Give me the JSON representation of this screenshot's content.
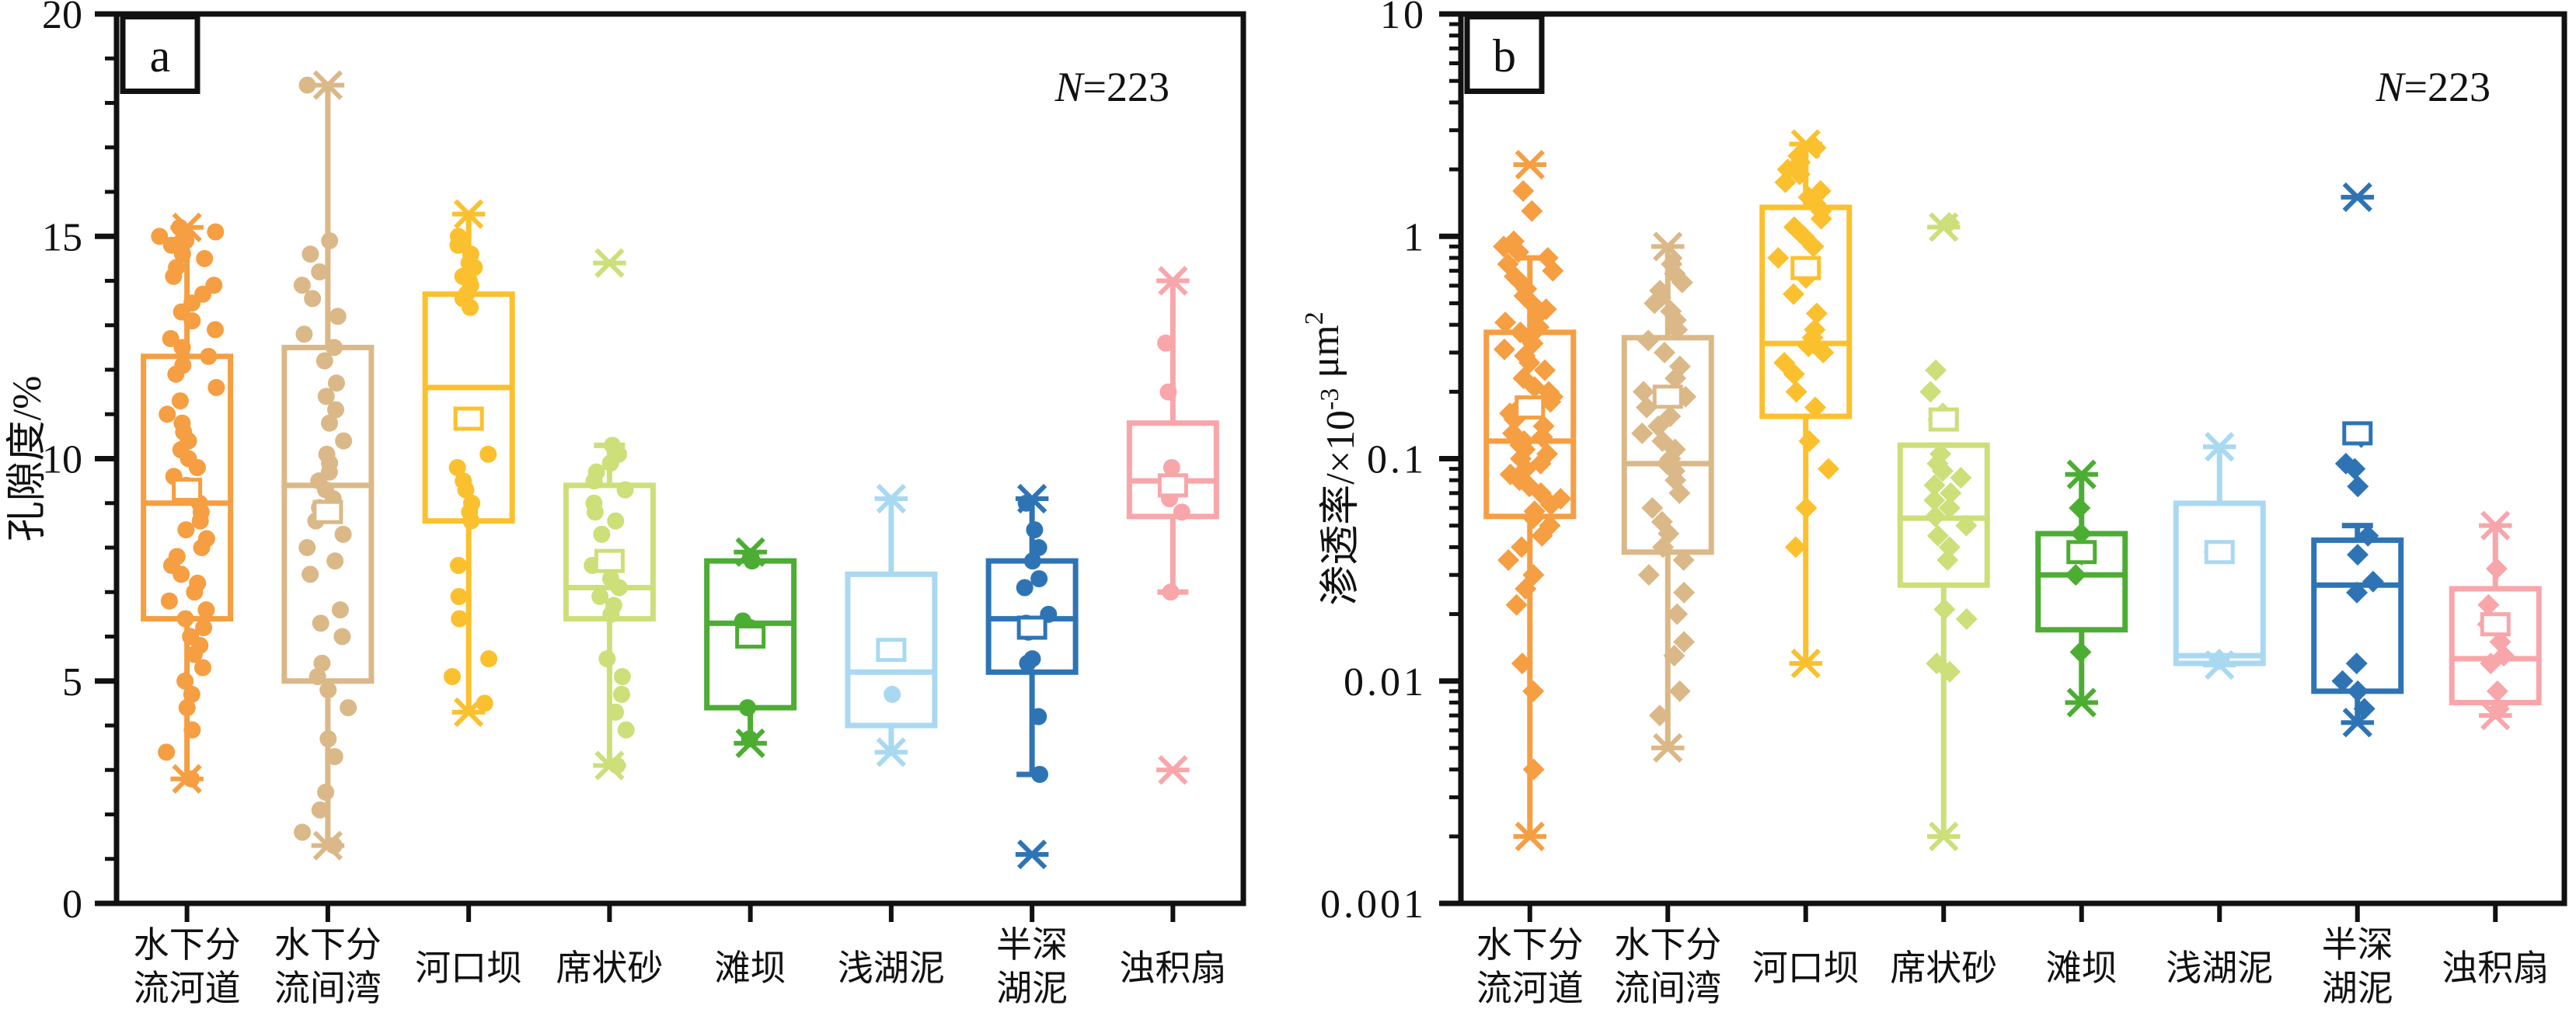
{
  "figure": {
    "background": "#ffffff",
    "sample_annotation": {
      "italic": "N",
      "rest": "=223"
    }
  },
  "chart_data": [
    {
      "type": "box",
      "panel_label": "a",
      "annotation": "N=223",
      "ylabel": "孔隙度/%",
      "ylabel_segments": [
        {
          "t": "孔隙度/%"
        }
      ],
      "y_scale": "linear",
      "ylim": [
        0,
        20
      ],
      "y_major_ticks": [
        0,
        5,
        10,
        15,
        20
      ],
      "y_tick_labels": [
        "0",
        "5",
        "10",
        "15",
        "20"
      ],
      "y_minor_step": 1,
      "point_marker": "circle",
      "legend_position": "none",
      "grid": false,
      "categories": [
        {
          "name": "水下分流河道",
          "lines": [
            "水下分",
            "流河道"
          ],
          "color": "#F59E42",
          "box": {
            "low": 2.8,
            "q1": 6.4,
            "median": 9.0,
            "mean": 9.3,
            "q3": 12.3,
            "high": 15.2,
            "star_top": true,
            "star_bottom": true
          },
          "outliers": [],
          "points": [
            15.2,
            15.1,
            15.0,
            14.9,
            14.8,
            14.6,
            14.5,
            14.3,
            14.1,
            13.9,
            13.7,
            13.5,
            13.3,
            13.1,
            12.9,
            12.7,
            12.5,
            12.3,
            12.1,
            11.9,
            11.6,
            11.3,
            11.0,
            10.8,
            10.6,
            10.4,
            10.2,
            10.0,
            9.8,
            9.6,
            9.4,
            9.2,
            9.0,
            8.8,
            8.6,
            8.4,
            8.2,
            8.0,
            7.8,
            7.6,
            7.4,
            7.2,
            7.0,
            6.8,
            6.6,
            6.4,
            6.2,
            6.0,
            5.8,
            5.6,
            5.3,
            5.0,
            4.7,
            4.4,
            3.9,
            3.4,
            2.8
          ]
        },
        {
          "name": "水下分流间湾",
          "lines": [
            "水下分",
            "流间湾"
          ],
          "color": "#DBB888",
          "box": {
            "low": 1.3,
            "q1": 5.0,
            "median": 9.4,
            "mean": 8.8,
            "q3": 12.5,
            "high": 18.4,
            "star_top": true,
            "star_bottom": true
          },
          "outliers": [],
          "points": [
            18.4,
            14.9,
            14.6,
            14.2,
            13.9,
            13.6,
            13.2,
            12.8,
            12.5,
            12.2,
            11.7,
            11.4,
            11.1,
            10.8,
            10.4,
            10.1,
            9.9,
            9.7,
            9.5,
            9.3,
            9.1,
            8.9,
            8.6,
            8.3,
            8.0,
            7.7,
            7.4,
            6.6,
            6.3,
            6.0,
            5.4,
            5.1,
            4.8,
            4.4,
            3.7,
            3.3,
            2.5,
            2.1,
            1.6,
            1.3
          ]
        },
        {
          "name": "河口坝",
          "lines": [
            "河口坝"
          ],
          "color": "#FBC02D",
          "box": {
            "low": 4.3,
            "q1": 8.6,
            "median": 11.6,
            "mean": 10.9,
            "q3": 13.7,
            "high": 15.5,
            "star_top": true,
            "star_bottom": true
          },
          "outliers": [],
          "points": [
            15.0,
            14.8,
            14.6,
            14.4,
            14.3,
            14.1,
            14.0,
            13.9,
            13.7,
            13.6,
            13.4,
            10.1,
            9.8,
            9.5,
            9.3,
            9.0,
            8.8,
            8.6,
            7.6,
            6.9,
            6.4,
            5.5,
            5.1,
            4.5
          ]
        },
        {
          "name": "席状砂",
          "lines": [
            "席状砂"
          ],
          "color": "#CCDF79",
          "box": {
            "low": 3.1,
            "q1": 6.4,
            "median": 7.1,
            "mean": 7.7,
            "q3": 9.4,
            "high": 10.3,
            "star_top": false,
            "star_bottom": true
          },
          "outliers": [
            14.4
          ],
          "points": [
            10.3,
            10.1,
            9.9,
            9.7,
            9.5,
            9.3,
            9.0,
            8.8,
            8.6,
            8.3,
            7.6,
            7.3,
            7.1,
            6.9,
            6.7,
            6.5,
            5.5,
            5.1,
            4.7,
            4.3,
            3.9,
            3.1
          ]
        },
        {
          "name": "滩坝",
          "lines": [
            "滩坝"
          ],
          "color": "#4CAD33",
          "box": {
            "low": 3.6,
            "q1": 4.4,
            "median": 6.3,
            "mean": 6.0,
            "q3": 7.7,
            "high": 7.9,
            "star_top": true,
            "star_bottom": true
          },
          "outliers": [],
          "points": [
            7.8,
            7.7,
            6.35,
            6.2,
            4.4,
            3.7
          ]
        },
        {
          "name": "浅湖泥",
          "lines": [
            "浅湖泥"
          ],
          "color": "#A9D9F1",
          "box": {
            "low": 3.4,
            "q1": 4.0,
            "median": 5.2,
            "mean": 5.7,
            "q3": 7.4,
            "high": 9.1,
            "star_top": true,
            "star_bottom": true
          },
          "outliers": [],
          "points": [
            5.7,
            4.7
          ]
        },
        {
          "name": "半深湖泥",
          "lines": [
            "半深",
            "湖泥"
          ],
          "color": "#2E74B5",
          "box": {
            "low": 2.9,
            "q1": 5.2,
            "median": 6.4,
            "mean": 6.2,
            "q3": 7.7,
            "high": 9.1,
            "star_top": true,
            "star_bottom": false
          },
          "outliers": [
            1.1
          ],
          "points": [
            9.0,
            8.4,
            8.0,
            7.7,
            7.3,
            7.1,
            6.5,
            6.3,
            6.1,
            5.5,
            5.4,
            4.2,
            2.9
          ]
        },
        {
          "name": "浊积扇",
          "lines": [
            "浊积扇"
          ],
          "color": "#F8A6AA",
          "box": {
            "low": 7.0,
            "q1": 8.7,
            "median": 9.5,
            "mean": 9.4,
            "q3": 10.8,
            "high": 14.0,
            "star_top": true,
            "star_bottom": false
          },
          "outliers": [
            3.0
          ],
          "points": [
            12.6,
            11.5,
            9.8,
            9.4,
            9.1,
            8.8,
            7.0
          ]
        }
      ]
    },
    {
      "type": "box",
      "panel_label": "b",
      "annotation": "N=223",
      "ylabel": "渗透率/×10⁻³ μm²",
      "ylabel_segments": [
        {
          "t": "渗透率/×10"
        },
        {
          "t": "-3",
          "sup": true
        },
        {
          "t": " μm"
        },
        {
          "t": "2",
          "sup": true
        }
      ],
      "y_scale": "log",
      "ylim": [
        0.001,
        10
      ],
      "y_major_ticks": [
        10,
        1,
        0.1,
        0.01,
        0.001
      ],
      "y_tick_labels": [
        "10",
        "1",
        "0.1",
        "0.01",
        "0.001"
      ],
      "point_marker": "diamond",
      "legend_position": "none",
      "grid": false,
      "categories": [
        {
          "name": "水下分流河道",
          "lines": [
            "水下分",
            "流河道"
          ],
          "color": "#F59E42",
          "box": {
            "low": 0.002,
            "q1": 0.055,
            "median": 0.12,
            "mean": 0.17,
            "q3": 0.37,
            "high": 0.8,
            "star_top": false,
            "star_bottom": true
          },
          "outliers": [
            2.1
          ],
          "points": [
            1.6,
            1.3,
            0.95,
            0.9,
            0.85,
            0.8,
            0.75,
            0.7,
            0.66,
            0.62,
            0.58,
            0.54,
            0.5,
            0.47,
            0.44,
            0.41,
            0.39,
            0.37,
            0.35,
            0.33,
            0.31,
            0.29,
            0.27,
            0.25,
            0.23,
            0.21,
            0.2,
            0.19,
            0.18,
            0.17,
            0.16,
            0.15,
            0.14,
            0.13,
            0.125,
            0.12,
            0.115,
            0.11,
            0.105,
            0.1,
            0.095,
            0.09,
            0.085,
            0.08,
            0.075,
            0.07,
            0.066,
            0.062,
            0.058,
            0.054,
            0.05,
            0.045,
            0.04,
            0.035,
            0.03,
            0.026,
            0.022,
            0.012,
            0.009,
            0.004
          ]
        },
        {
          "name": "水下分流间湾",
          "lines": [
            "水下分",
            "流间湾"
          ],
          "color": "#DBB888",
          "box": {
            "low": 0.005,
            "q1": 0.038,
            "median": 0.095,
            "mean": 0.19,
            "q3": 0.35,
            "high": 0.9,
            "star_top": true,
            "star_bottom": true
          },
          "outliers": [],
          "points": [
            0.75,
            0.68,
            0.62,
            0.57,
            0.53,
            0.5,
            0.46,
            0.42,
            0.38,
            0.34,
            0.3,
            0.26,
            0.23,
            0.2,
            0.19,
            0.17,
            0.155,
            0.14,
            0.13,
            0.12,
            0.11,
            0.1,
            0.095,
            0.088,
            0.08,
            0.07,
            0.06,
            0.052,
            0.046,
            0.04,
            0.035,
            0.03,
            0.025,
            0.02,
            0.015,
            0.013,
            0.009,
            0.007
          ]
        },
        {
          "name": "河口坝",
          "lines": [
            "河口坝"
          ],
          "color": "#FBC02D",
          "box": {
            "low": 0.012,
            "q1": 0.155,
            "median": 0.33,
            "mean": 0.72,
            "q3": 1.35,
            "high": 2.6,
            "star_top": true,
            "star_bottom": true
          },
          "outliers": [],
          "points": [
            2.5,
            2.3,
            2.15,
            2.0,
            1.9,
            1.75,
            1.6,
            1.5,
            1.4,
            1.3,
            1.2,
            1.1,
            1.0,
            0.9,
            0.8,
            0.65,
            0.55,
            0.45,
            0.38,
            0.35,
            0.32,
            0.3,
            0.27,
            0.24,
            0.2,
            0.17,
            0.12,
            0.09,
            0.06,
            0.04
          ]
        },
        {
          "name": "席状砂",
          "lines": [
            "席状砂"
          ],
          "color": "#CCDF79",
          "box": {
            "low": 0.002,
            "q1": 0.027,
            "median": 0.054,
            "mean": 0.15,
            "q3": 0.115,
            "high": 0.115,
            "star_top": false,
            "star_bottom": true
          },
          "outliers": [
            1.1
          ],
          "points": [
            1.15,
            0.25,
            0.2,
            0.16,
            0.15,
            0.105,
            0.095,
            0.088,
            0.082,
            0.076,
            0.07,
            0.065,
            0.06,
            0.055,
            0.05,
            0.045,
            0.04,
            0.035,
            0.021,
            0.019,
            0.012,
            0.011
          ]
        },
        {
          "name": "滩坝",
          "lines": [
            "滩坝"
          ],
          "color": "#4CAD33",
          "box": {
            "low": 0.008,
            "q1": 0.017,
            "median": 0.03,
            "mean": 0.038,
            "q3": 0.046,
            "high": 0.085,
            "star_top": true,
            "star_bottom": true
          },
          "outliers": [],
          "points": [
            0.06,
            0.046,
            0.037,
            0.03,
            0.0135
          ]
        },
        {
          "name": "浅湖泥",
          "lines": [
            "浅湖泥"
          ],
          "color": "#A9D9F1",
          "box": {
            "low": 0.0118,
            "q1": 0.012,
            "median": 0.013,
            "mean": 0.038,
            "q3": 0.063,
            "high": 0.113,
            "star_top": true,
            "star_bottom": true
          },
          "outliers": [],
          "points": [
            0.038,
            0.0125
          ]
        },
        {
          "name": "半深湖泥",
          "lines": [
            "半深",
            "湖泥"
          ],
          "color": "#2E74B5",
          "box": {
            "low": 0.0065,
            "q1": 0.009,
            "median": 0.027,
            "mean": 0.13,
            "q3": 0.043,
            "high": 0.05,
            "star_top": false,
            "star_bottom": true
          },
          "outliers": [
            1.5
          ],
          "points": [
            0.125,
            0.095,
            0.09,
            0.075,
            0.045,
            0.037,
            0.028,
            0.025,
            0.012,
            0.01,
            0.009,
            0.0075
          ]
        },
        {
          "name": "浊积扇",
          "lines": [
            "浊积扇"
          ],
          "color": "#F8A6AA",
          "box": {
            "low": 0.007,
            "q1": 0.008,
            "median": 0.0126,
            "mean": 0.018,
            "q3": 0.026,
            "high": 0.05,
            "star_top": true,
            "star_bottom": true
          },
          "outliers": [],
          "points": [
            0.032,
            0.022,
            0.018,
            0.015,
            0.013,
            0.012,
            0.009,
            0.0075
          ]
        }
      ]
    }
  ]
}
